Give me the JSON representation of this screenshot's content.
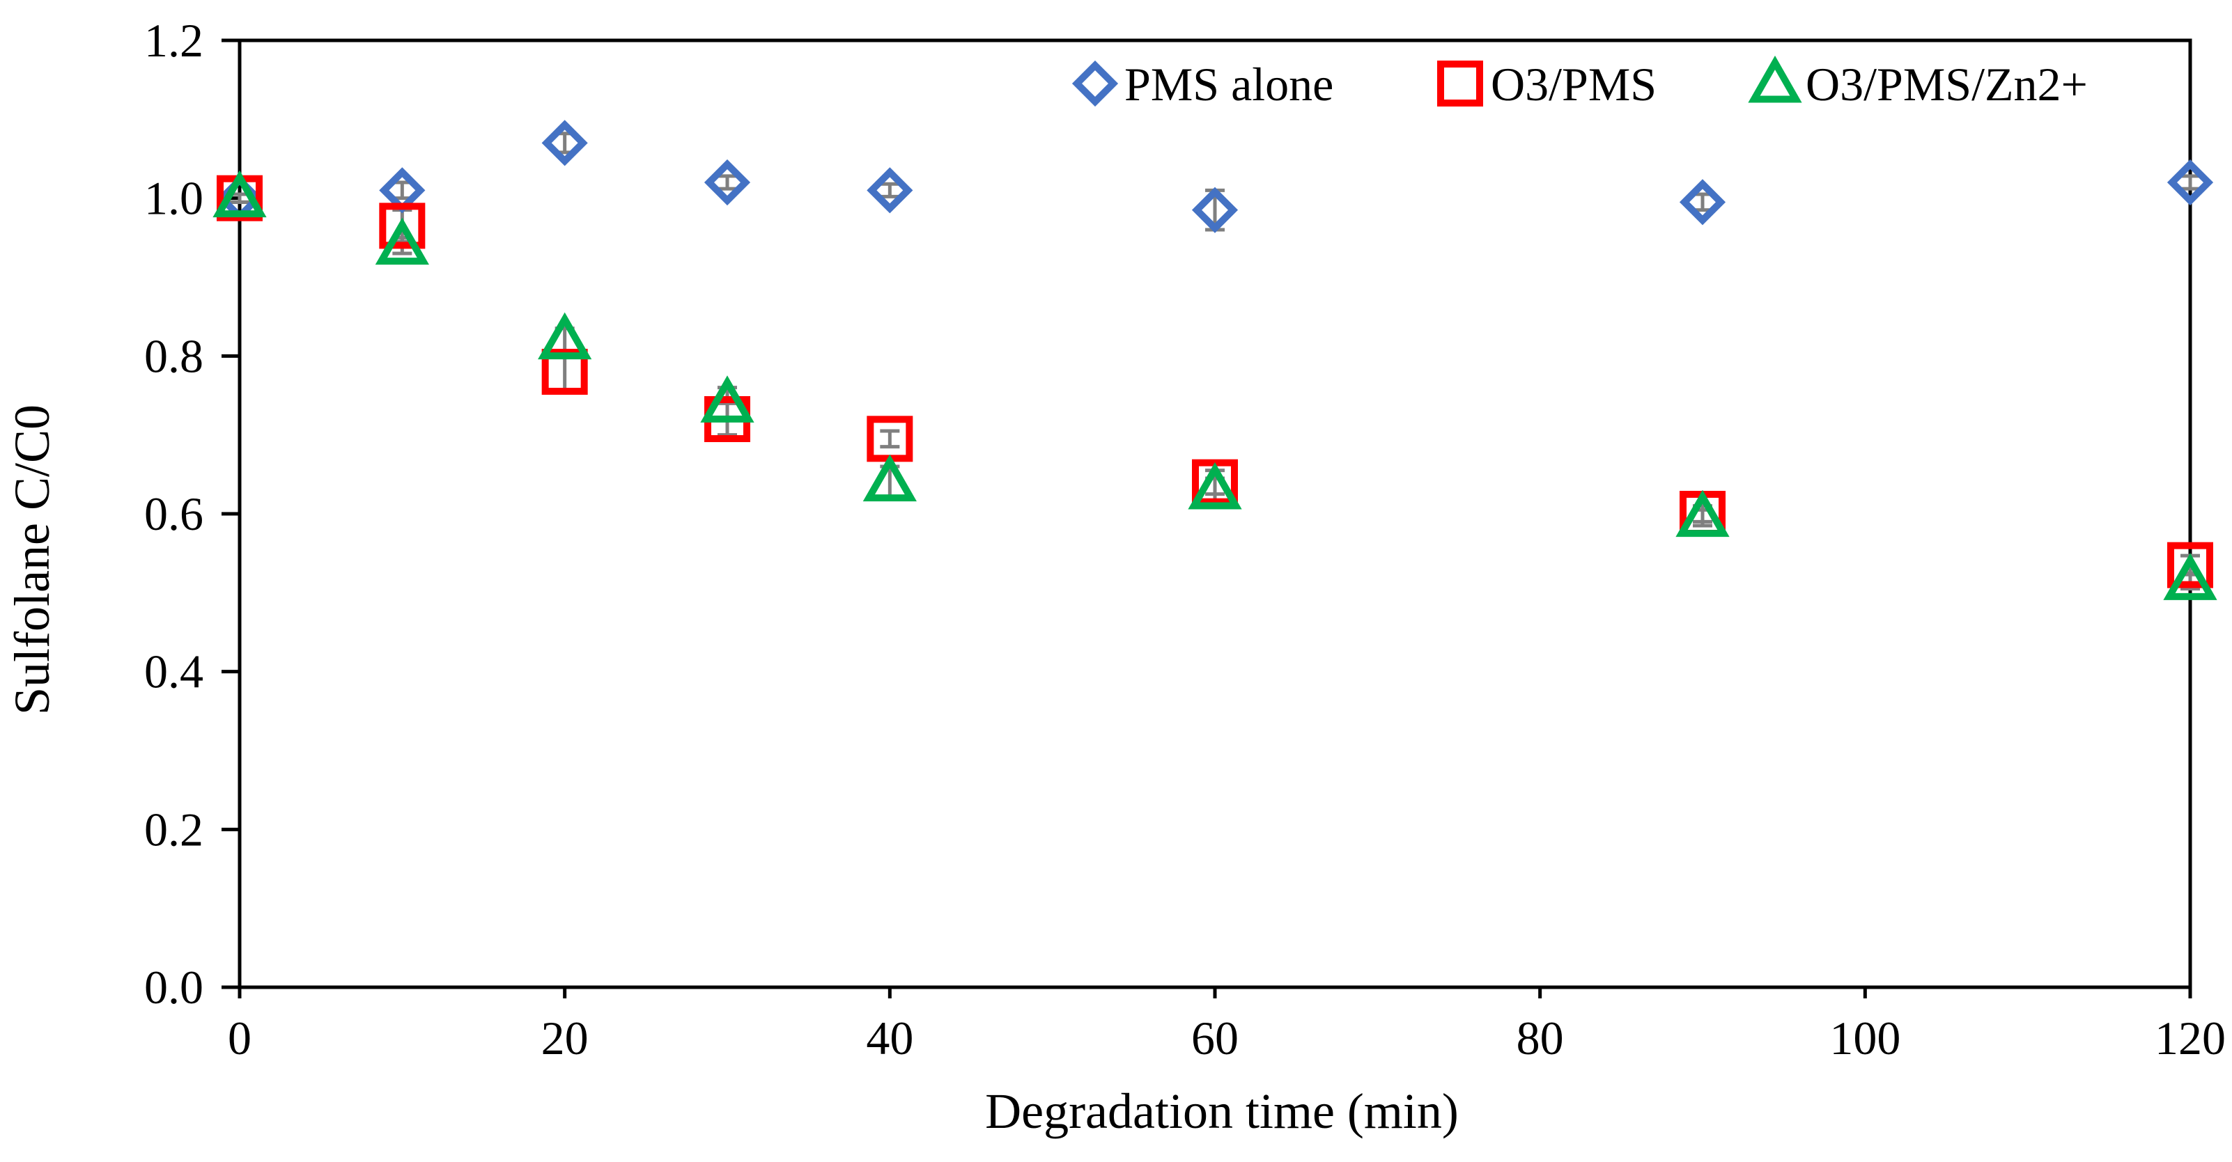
{
  "chart_data": {
    "type": "scatter",
    "title": "",
    "xlabel": "Degradation time (min)",
    "ylabel": "Sulfolane C/C0",
    "xlim": [
      0,
      120
    ],
    "ylim": [
      0,
      1.2
    ],
    "xticks": [
      0,
      20,
      40,
      60,
      80,
      100,
      120
    ],
    "yticks": [
      0.0,
      0.2,
      0.4,
      0.6,
      0.8,
      1.0,
      1.2
    ],
    "xtick_labels": [
      "0",
      "20",
      "40",
      "60",
      "80",
      "100",
      "120"
    ],
    "ytick_labels": [
      "0.0",
      "0.2",
      "0.4",
      "0.6",
      "0.8",
      "1.0",
      "1.2"
    ],
    "grid": false,
    "legend_position": "top-right",
    "series": [
      {
        "name": "PMS alone",
        "marker": "diamond",
        "color": "#4472C4",
        "x": [
          0,
          10,
          20,
          30,
          40,
          60,
          90,
          120
        ],
        "y": [
          1.0,
          1.01,
          1.07,
          1.02,
          1.01,
          0.985,
          0.995,
          1.02
        ],
        "err": [
          0.005,
          0.01,
          0.012,
          0.008,
          0.008,
          0.025,
          0.01,
          0.008
        ]
      },
      {
        "name": "O3/PMS",
        "marker": "square",
        "color": "#FF0000",
        "x": [
          0,
          10,
          20,
          30,
          40,
          60,
          90,
          120
        ],
        "y": [
          1.0,
          0.965,
          0.78,
          0.72,
          0.695,
          0.64,
          0.6,
          0.535
        ],
        "err": [
          0.005,
          0.02,
          0.025,
          0.02,
          0.01,
          0.015,
          0.01,
          0.012
        ]
      },
      {
        "name": "O3/PMS/Zn2+",
        "marker": "triangle",
        "color": "#00B050",
        "x": [
          0,
          10,
          20,
          30,
          40,
          60,
          90,
          120
        ],
        "y": [
          1.0,
          0.94,
          0.82,
          0.74,
          0.64,
          0.63,
          0.595,
          0.515
        ],
        "err": [
          0.005,
          0.01,
          0.015,
          0.02,
          0.02,
          0.015,
          0.01,
          0.01
        ]
      }
    ]
  },
  "colors": {
    "axis": "#000000",
    "error_bar": "#7F7F7F"
  }
}
